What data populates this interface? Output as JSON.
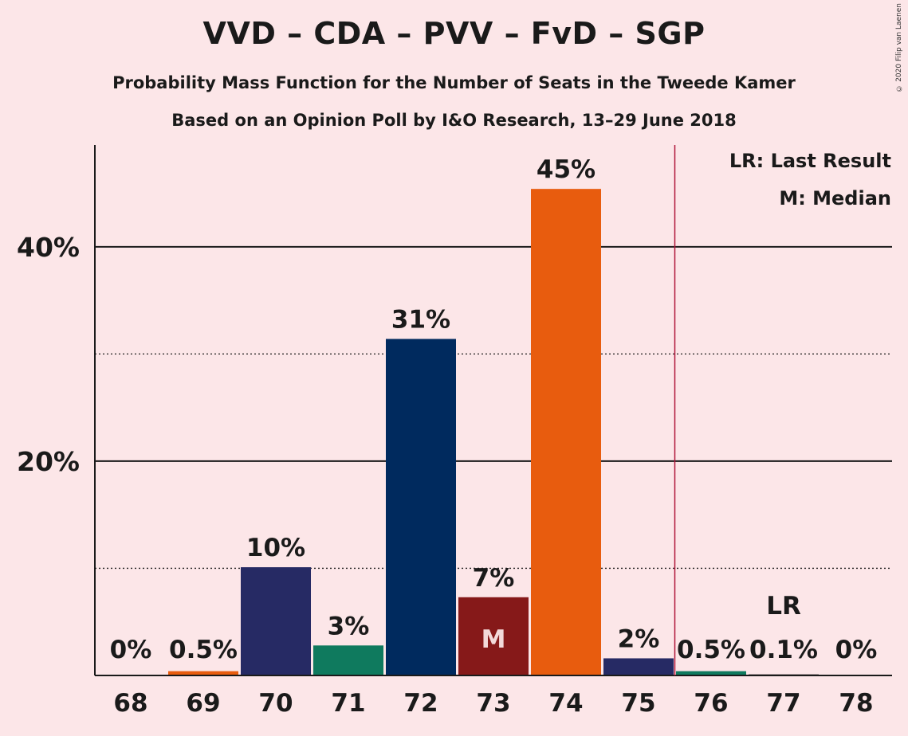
{
  "title": "VVD – CDA – PVV – FvD – SGP",
  "subtitle": "Probability Mass Function for the Number of Seats in the Tweede Kamer",
  "poll_line": "Based on an Opinion Poll by I&O Research, 13–29 June 2018",
  "copyright": "© 2020 Filip van Laenen",
  "legend": {
    "last_result": "LR: Last Result",
    "median": "M: Median"
  },
  "markers": {
    "median_label": "M",
    "last_result_label": "LR"
  },
  "chart_data": {
    "type": "bar",
    "categories": [
      "68",
      "69",
      "70",
      "71",
      "72",
      "73",
      "74",
      "75",
      "76",
      "77",
      "78"
    ],
    "values": [
      0,
      0.5,
      10,
      3,
      31,
      7,
      45,
      2,
      0.5,
      0.1,
      0
    ],
    "plot_values": [
      0,
      0.4,
      10.1,
      2.8,
      31.4,
      7.3,
      45.4,
      1.6,
      0.4,
      0.1,
      0
    ],
    "value_labels": [
      "0%",
      "0.5%",
      "10%",
      "3%",
      "31%",
      "7%",
      "45%",
      "2%",
      "0.5%",
      "0.1%",
      "0%"
    ],
    "bar_colors": [
      "#e85c0e",
      "#e85c0e",
      "#262a64",
      "#0f7a5e",
      "#002a5e",
      "#861919",
      "#e85c0e",
      "#262a64",
      "#0f7a5e",
      "#1a1a1a",
      "#1a1a1a"
    ],
    "median_category": "73",
    "last_result_category": "77",
    "majority_line_after": "75",
    "majority_line_color": "#b0153a",
    "ylim": [
      0,
      49.5
    ],
    "major_ticks": [
      20,
      40
    ],
    "major_tick_labels": [
      "20%",
      "40%"
    ],
    "minor_ticks": [
      10,
      30
    ],
    "grid": true,
    "legend_position": "top-right"
  }
}
